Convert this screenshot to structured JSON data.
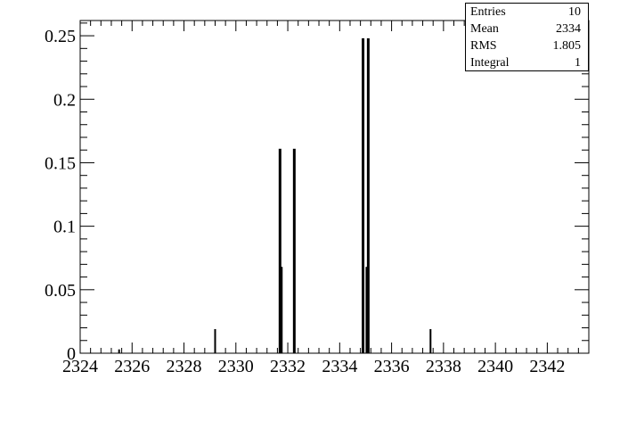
{
  "chart_data": {
    "type": "bar",
    "title": "",
    "xlabel": "",
    "ylabel": "",
    "xlim": [
      2324,
      2343.6
    ],
    "ylim": [
      0,
      0.262
    ],
    "x_ticks": [
      2324,
      2326,
      2328,
      2330,
      2332,
      2334,
      2336,
      2338,
      2340,
      2342
    ],
    "x_tick_labels": [
      "2324",
      "2326",
      "2328",
      "2330",
      "2332",
      "2334",
      "2336",
      "2338",
      "2340",
      "2342"
    ],
    "y_ticks": [
      0,
      0.05,
      0.1,
      0.15,
      0.2,
      0.25
    ],
    "y_tick_labels": [
      "0",
      "0.05",
      "0.1",
      "0.15",
      "0.2",
      "0.25"
    ],
    "grid": false,
    "legend": "none",
    "bar_color": "#000000",
    "bars": [
      {
        "x": 2325.5,
        "y": 0.003
      },
      {
        "x": 2329.2,
        "y": 0.019
      },
      {
        "x": 2331.7,
        "y": 0.161
      },
      {
        "x": 2331.75,
        "y": 0.068
      },
      {
        "x": 2332.25,
        "y": 0.161
      },
      {
        "x": 2334.9,
        "y": 0.248
      },
      {
        "x": 2335.05,
        "y": 0.068
      },
      {
        "x": 2335.1,
        "y": 0.248
      },
      {
        "x": 2337.5,
        "y": 0.019
      }
    ]
  },
  "stats": {
    "rows": [
      {
        "label": "Entries",
        "value": "10"
      },
      {
        "label": "Mean",
        "value": "2334"
      },
      {
        "label": "RMS",
        "value": "1.805"
      },
      {
        "label": "Integral",
        "value": "1"
      }
    ]
  }
}
